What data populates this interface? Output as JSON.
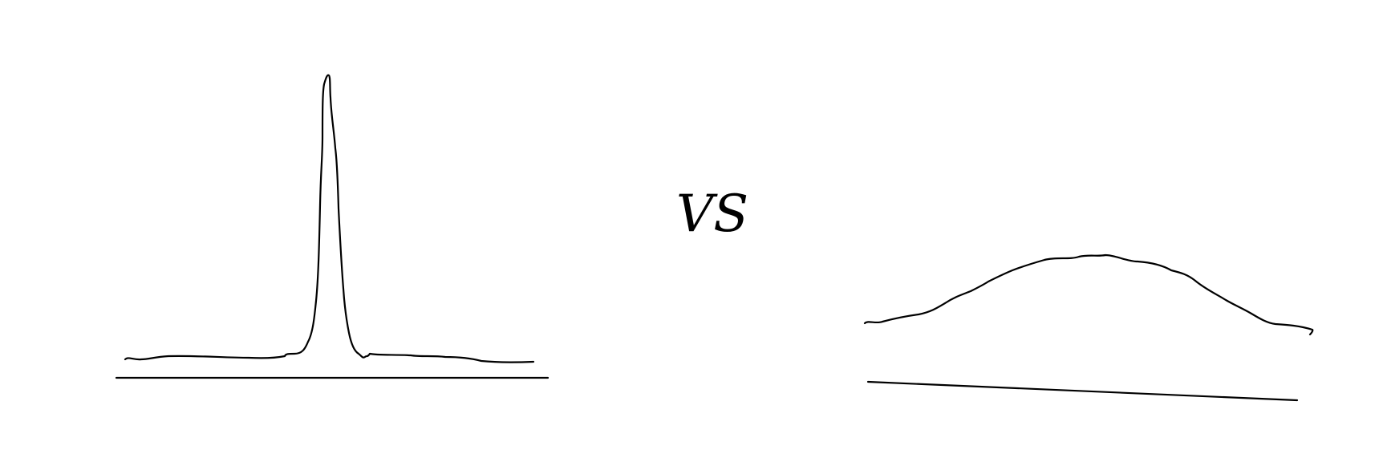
{
  "label": "VS",
  "colors": {
    "ink": "#000000",
    "background": "#ffffff"
  },
  "sketches": [
    {
      "name": "sharp-peak",
      "shape": "narrow tall spike on a flat baseline"
    },
    {
      "name": "broad-hump",
      "shape": "wide low hump above a slightly slanted baseline"
    }
  ]
}
